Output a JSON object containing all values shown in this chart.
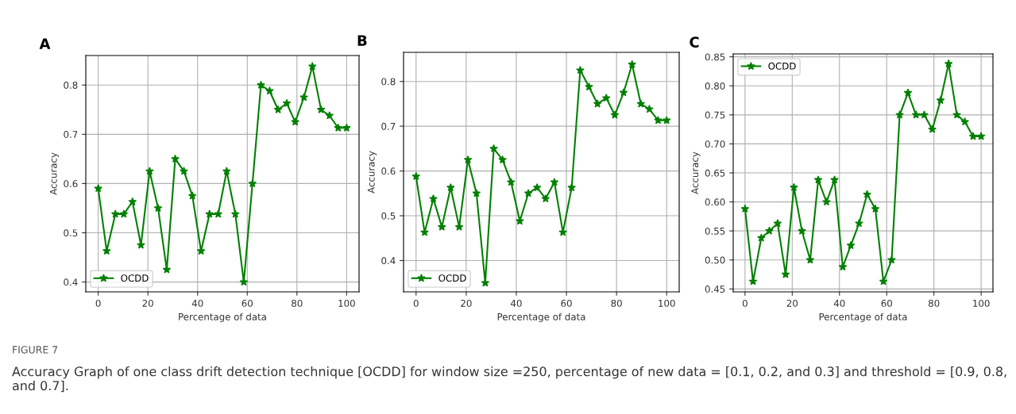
{
  "chart_data": [
    {
      "type": "line",
      "title": "A",
      "xlabel": "Percentage of data",
      "ylabel": "Accuracy",
      "xlim": [
        -5,
        105
      ],
      "ylim": [
        0.38,
        0.86
      ],
      "xticks": [
        0,
        20,
        40,
        60,
        80,
        100
      ],
      "yticks": [
        0.4,
        0.5,
        0.6,
        0.7,
        0.8
      ],
      "grid": true,
      "legend": "bottom left",
      "marker": "star",
      "line_style": "solid",
      "x": [
        0,
        3.4,
        6.9,
        10.3,
        13.8,
        17.2,
        20.7,
        24.1,
        27.6,
        31,
        34.5,
        37.9,
        41.4,
        44.8,
        48.3,
        51.7,
        55.2,
        58.6,
        62.1,
        65.5,
        69,
        72.4,
        75.9,
        79.3,
        82.8,
        86.2,
        89.7,
        93.1,
        96.6,
        100
      ],
      "series": [
        {
          "name": "OCDD",
          "color": "#008000",
          "values": [
            0.59,
            0.463,
            0.538,
            0.538,
            0.563,
            0.475,
            0.625,
            0.55,
            0.425,
            0.65,
            0.625,
            0.575,
            0.463,
            0.538,
            0.538,
            0.625,
            0.538,
            0.4,
            0.6,
            0.8,
            0.788,
            0.75,
            0.763,
            0.725,
            0.775,
            0.838,
            0.75,
            0.738,
            0.713,
            0.713
          ]
        }
      ],
      "annotations": [
        "FIGURE 7",
        "Accuracy Graph of one class drift detection technique [OCDD] for window size =250, percentage of new data = [0.1, 0.2, and 0.3] and threshold = [0.9, 0.8, and 0.7]."
      ]
    },
    {
      "type": "line",
      "title": "B",
      "xlabel": "Percentage of data",
      "ylabel": "Accuracy",
      "xlim": [
        -5,
        105
      ],
      "ylim": [
        0.33,
        0.865
      ],
      "xticks": [
        0,
        20,
        40,
        60,
        80,
        100
      ],
      "yticks": [
        0.4,
        0.5,
        0.6,
        0.7,
        0.8
      ],
      "grid": true,
      "legend": "bottom left",
      "marker": "star",
      "line_style": "solid",
      "x": [
        0,
        3.4,
        6.9,
        10.3,
        13.8,
        17.2,
        20.7,
        24.1,
        27.6,
        31,
        34.5,
        37.9,
        41.4,
        44.8,
        48.3,
        51.7,
        55.2,
        58.6,
        62.1,
        65.5,
        69,
        72.4,
        75.9,
        79.3,
        82.8,
        86.2,
        89.7,
        93.1,
        96.6,
        100
      ],
      "series": [
        {
          "name": "OCDD",
          "color": "#008000",
          "values": [
            0.588,
            0.463,
            0.538,
            0.475,
            0.563,
            0.475,
            0.625,
            0.55,
            0.35,
            0.65,
            0.625,
            0.575,
            0.488,
            0.55,
            0.563,
            0.538,
            0.575,
            0.463,
            0.563,
            0.825,
            0.788,
            0.75,
            0.763,
            0.725,
            0.775,
            0.838,
            0.75,
            0.738,
            0.713,
            0.713
          ]
        }
      ]
    },
    {
      "type": "line",
      "title": "C",
      "xlabel": "Percentage of data",
      "ylabel": "Accuracy",
      "xlim": [
        -5,
        105
      ],
      "ylim": [
        0.445,
        0.855
      ],
      "xticks": [
        0,
        20,
        40,
        60,
        80,
        100
      ],
      "yticks": [
        {
          "value": 0.45,
          "label": "0.45"
        },
        {
          "value": 0.5,
          "label": "0.50"
        },
        {
          "value": 0.55,
          "label": "0.55"
        },
        {
          "value": 0.6,
          "label": "0.60"
        },
        {
          "value": 0.65,
          "label": "0.65"
        },
        {
          "value": 0.7,
          "label": "0.70"
        },
        {
          "value": 0.75,
          "label": "0.75"
        },
        {
          "value": 0.8,
          "label": "0.80"
        },
        {
          "value": 0.85,
          "label": "0.85"
        }
      ],
      "grid": true,
      "legend": "top left",
      "marker": "star",
      "line_style": "solid",
      "x": [
        0,
        3.4,
        6.9,
        10.3,
        13.8,
        17.2,
        20.7,
        24.1,
        27.6,
        31,
        34.5,
        37.9,
        41.4,
        44.8,
        48.3,
        51.7,
        55.2,
        58.6,
        62.1,
        65.5,
        69,
        72.4,
        75.9,
        79.3,
        82.8,
        86.2,
        89.7,
        93.1,
        96.6,
        100
      ],
      "series": [
        {
          "name": "OCDD",
          "color": "#008000",
          "values": [
            0.588,
            0.463,
            0.538,
            0.55,
            0.563,
            0.475,
            0.625,
            0.55,
            0.5,
            0.638,
            0.6,
            0.638,
            0.488,
            0.525,
            0.563,
            0.613,
            0.588,
            0.463,
            0.5,
            0.75,
            0.788,
            0.75,
            0.75,
            0.725,
            0.775,
            0.838,
            0.75,
            0.738,
            0.713,
            0.713
          ]
        }
      ]
    }
  ]
}
